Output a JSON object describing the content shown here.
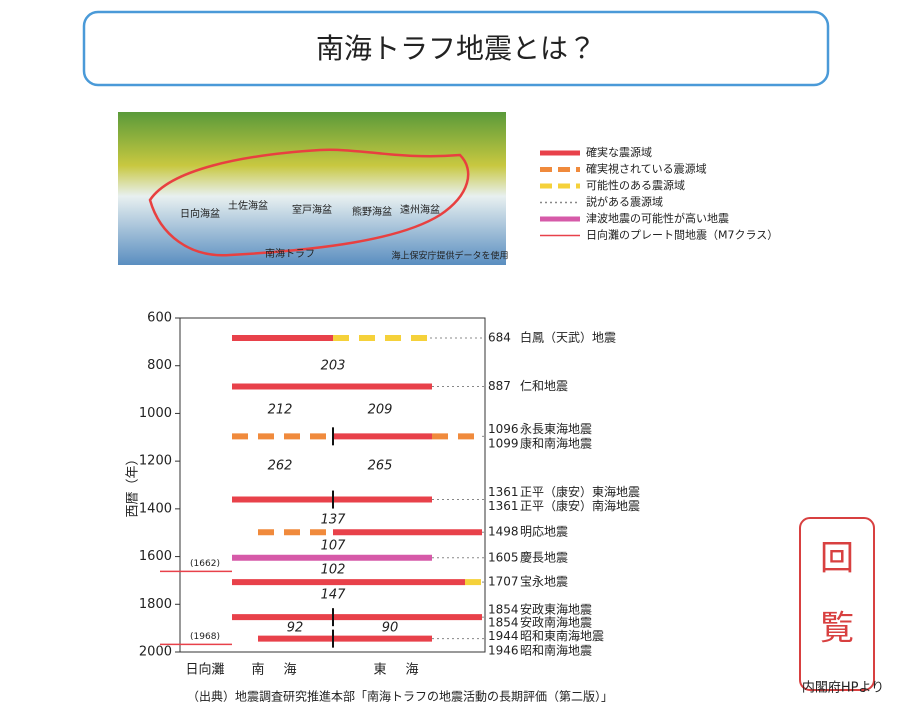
{
  "header": {
    "title": "南海トラフ地震とは？"
  },
  "map": {
    "labels": [
      "日向海盆",
      "土佐海盆",
      "室戸海盆",
      "熊野海盆",
      "遠州海盆",
      "南海トラフ",
      "海上保安庁提供データを使用"
    ]
  },
  "legend": {
    "items": [
      {
        "label": "確実な震源域",
        "color": "#e8414a",
        "dash": "none"
      },
      {
        "label": "確実視されている震源域",
        "color": "#f08a3c",
        "dash": "12 6"
      },
      {
        "label": "可能性のある震源域",
        "color": "#f5d13a",
        "dash": "12 6"
      },
      {
        "label": "説がある震源域",
        "color": "#888888",
        "dash": "2 3"
      },
      {
        "label": "津波地震の可能性が高い地震",
        "color": "#d65aa8",
        "dash": "none"
      },
      {
        "label": "日向灘のプレート間地震（M7クラス）",
        "color": "#e8414a",
        "dash": "thin"
      }
    ]
  },
  "chart_data": {
    "type": "timeline",
    "ylabel": "西暦（年）",
    "ylim": [
      600,
      2000
    ],
    "yticks": [
      600,
      800,
      1000,
      1200,
      1400,
      1600,
      1800,
      2000
    ],
    "regions": [
      "日向灘",
      "南",
      "海",
      "東",
      "海"
    ],
    "events": [
      {
        "year": 684,
        "name": "白鳳（天武）地震"
      },
      {
        "year": 887,
        "name": "仁和地震"
      },
      {
        "year": 1096,
        "name": "永長東海地震"
      },
      {
        "year": 1099,
        "name": "康和南海地震"
      },
      {
        "year": 1361,
        "name": "正平（康安）東海地震"
      },
      {
        "year": 1361,
        "name": "正平（康安）南海地震"
      },
      {
        "year": 1498,
        "name": "明応地震"
      },
      {
        "year": 1605,
        "name": "慶長地震"
      },
      {
        "year": 1707,
        "name": "宝永地震"
      },
      {
        "year": 1854,
        "name": "安政東海地震"
      },
      {
        "year": 1854,
        "name": "安政南海地震"
      },
      {
        "year": 1944,
        "name": "昭和東南海地震"
      },
      {
        "year": 1946,
        "name": "昭和南海地震"
      }
    ],
    "hyuganada": [
      {
        "value": 1662,
        "label": "(1662)"
      },
      {
        "value": 1968,
        "label": "(1968)"
      }
    ],
    "intervals": [
      203,
      212,
      209,
      262,
      265,
      137,
      107,
      102,
      147,
      92,
      90
    ]
  },
  "footer": {
    "source": "（出典）地震調査研究推進本部「南海トラフの地震活動の長期評価（第二版）」",
    "credit": "内閣府HPより",
    "stamp": [
      "回",
      "覧"
    ]
  }
}
